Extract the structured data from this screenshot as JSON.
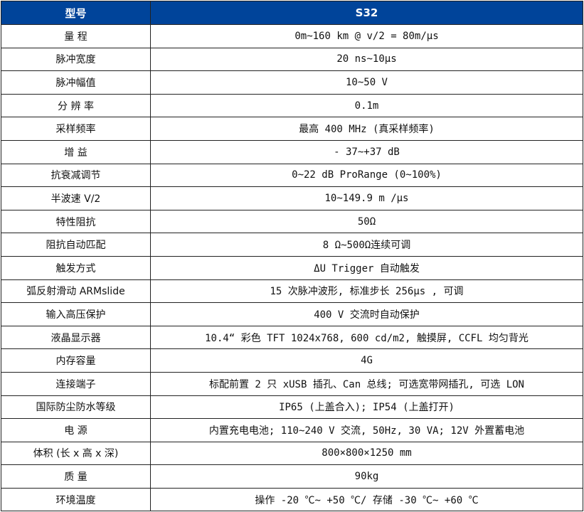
{
  "header": {
    "label": "型号",
    "value": "S32",
    "color": "#00449a"
  },
  "rows": [
    {
      "label": "量  程",
      "value": "0m~160 km @ v/2 = 80m/μs"
    },
    {
      "label": "脉冲宽度",
      "value": "20 ns~10μs"
    },
    {
      "label": "脉冲幅值",
      "value": "10~50 V"
    },
    {
      "label": "分 辨 率",
      "value": "0.1m"
    },
    {
      "label": "采样频率",
      "value": "最高 400 MHz (真采样频率)"
    },
    {
      "label": "增  益",
      "value": "- 37~+37 dB"
    },
    {
      "label": "抗衰减调节",
      "value": "0~22 dB ProRange (0~100%)"
    },
    {
      "label": "半波速 V/2",
      "value": "10~149.9 m /μs"
    },
    {
      "label": "特性阻抗",
      "value": "50Ω"
    },
    {
      "label": "阻抗自动匹配",
      "value": "8 Ω~500Ω连续可调"
    },
    {
      "label": "触发方式",
      "value": "ΔU Trigger 自动触发"
    },
    {
      "label": "弧反射滑动 ARMslide",
      "value": "15 次脉冲波形, 标准步长 256μs , 可调"
    },
    {
      "label": "输入高压保护",
      "value": "400 V 交流时自动保护"
    },
    {
      "label": "液晶显示器",
      "value": "10.4“ 彩色 TFT 1024x768, 600 cd/m2, 触摸屏, CCFL 均匀背光"
    },
    {
      "label": "内存容量",
      "value": "4G"
    },
    {
      "label": "连接端子",
      "value": "标配前置 2 只 xUSB 插孔、Can 总线; 可选宽带网插孔, 可选 LON"
    },
    {
      "label": "国际防尘防水等级",
      "value": "IP65 (上盖合入); IP54 (上盖打开)"
    },
    {
      "label": "电  源",
      "value": "内置充电电池; 110~240 V 交流, 50Hz, 30 VA; 12V 外置蓄电池"
    },
    {
      "label": "体积 (长 x 高 x 深)",
      "value": "800×800×1250 mm"
    },
    {
      "label": "质  量",
      "value": "90kg"
    },
    {
      "label": "环境温度",
      "value": "操作 -20 ℃~ +50 ℃/ 存储 -30 ℃~ +60 ℃"
    }
  ]
}
